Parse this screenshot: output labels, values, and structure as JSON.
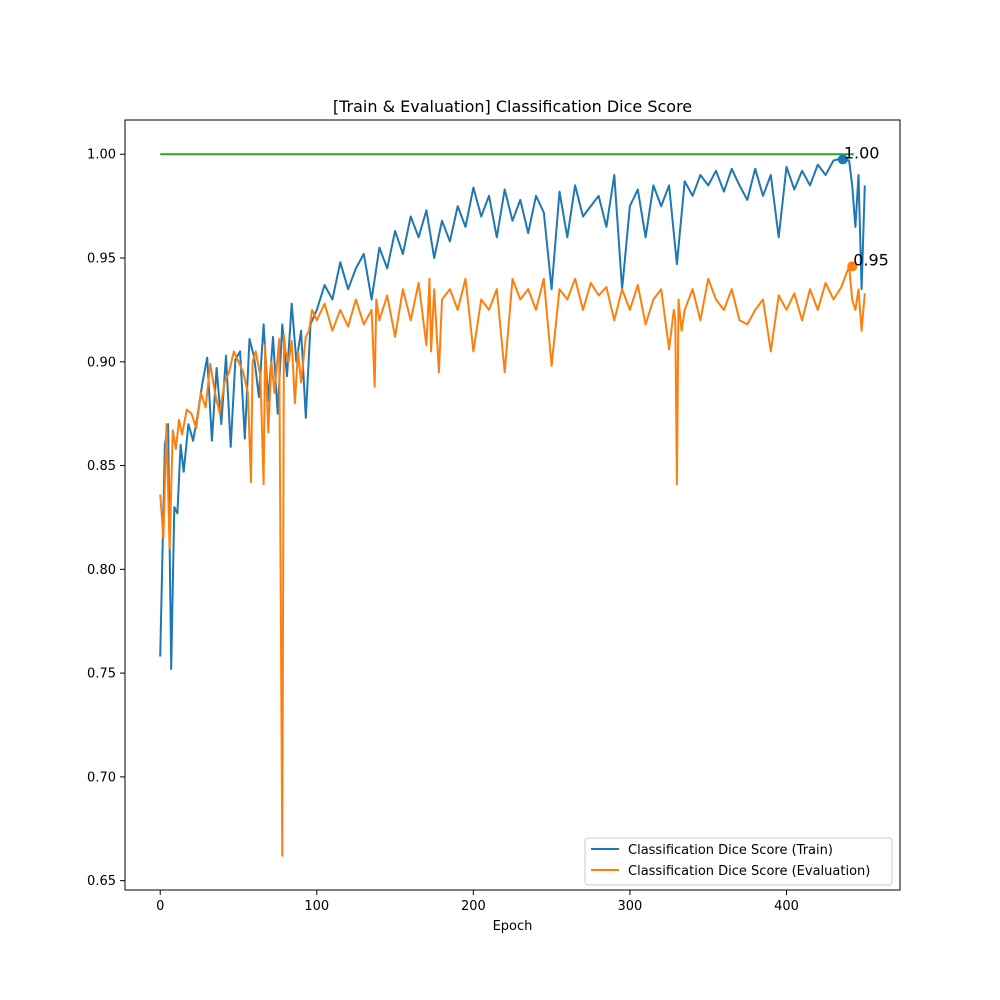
{
  "chart_data": {
    "type": "line",
    "title": "[Train & Evaluation] Classification Dice Score",
    "xlabel": "Epoch",
    "ylabel": "",
    "xlim": [
      -22.5,
      472.5
    ],
    "ylim": [
      0.6455,
      1.0165
    ],
    "xticks": [
      0,
      100,
      200,
      300,
      400
    ],
    "xtick_labels": [
      "0",
      "100",
      "200",
      "300",
      "400"
    ],
    "yticks": [
      0.65,
      0.7,
      0.75,
      0.8,
      0.85,
      0.9,
      0.95,
      1.0
    ],
    "ytick_labels": [
      "0.65",
      "0.70",
      "0.75",
      "0.80",
      "0.85",
      "0.90",
      "0.95",
      "1.00"
    ],
    "grid": false,
    "legend_position": "lower-right",
    "series": [
      {
        "name": "Classification Dice Score (Train)",
        "color": "#1f77b4",
        "x": [
          0,
          3,
          5,
          7,
          9,
          11,
          13,
          15,
          18,
          21,
          24,
          27,
          30,
          33,
          36,
          39,
          42,
          45,
          48,
          51,
          54,
          57,
          60,
          63,
          66,
          69,
          72,
          75,
          78,
          81,
          84,
          87,
          90,
          93,
          96,
          100,
          105,
          110,
          115,
          120,
          125,
          130,
          135,
          140,
          145,
          150,
          155,
          160,
          165,
          170,
          175,
          180,
          185,
          190,
          195,
          200,
          205,
          210,
          215,
          220,
          225,
          230,
          235,
          240,
          245,
          250,
          255,
          260,
          265,
          270,
          275,
          280,
          285,
          290,
          295,
          300,
          305,
          310,
          315,
          320,
          325,
          330,
          335,
          340,
          345,
          350,
          355,
          360,
          365,
          370,
          375,
          380,
          385,
          390,
          395,
          400,
          405,
          410,
          415,
          420,
          425,
          430,
          435,
          440,
          442,
          444,
          446,
          448,
          450
        ],
        "y": [
          0.758,
          0.86,
          0.87,
          0.752,
          0.83,
          0.827,
          0.86,
          0.847,
          0.87,
          0.862,
          0.875,
          0.89,
          0.902,
          0.862,
          0.897,
          0.87,
          0.903,
          0.859,
          0.901,
          0.905,
          0.863,
          0.911,
          0.902,
          0.883,
          0.918,
          0.881,
          0.912,
          0.875,
          0.918,
          0.893,
          0.928,
          0.9,
          0.915,
          0.873,
          0.918,
          0.925,
          0.937,
          0.93,
          0.948,
          0.935,
          0.945,
          0.952,
          0.93,
          0.955,
          0.945,
          0.963,
          0.952,
          0.97,
          0.96,
          0.973,
          0.95,
          0.968,
          0.958,
          0.975,
          0.965,
          0.984,
          0.97,
          0.98,
          0.96,
          0.983,
          0.968,
          0.978,
          0.962,
          0.98,
          0.972,
          0.935,
          0.982,
          0.96,
          0.985,
          0.97,
          0.975,
          0.98,
          0.965,
          0.99,
          0.935,
          0.975,
          0.983,
          0.96,
          0.985,
          0.975,
          0.985,
          0.947,
          0.987,
          0.98,
          0.99,
          0.985,
          0.992,
          0.982,
          0.993,
          0.985,
          0.978,
          0.993,
          0.98,
          0.99,
          0.96,
          0.994,
          0.983,
          0.992,
          0.985,
          0.995,
          0.99,
          0.997,
          0.998,
          0.997,
          0.985,
          0.965,
          0.99,
          0.935,
          0.985
        ]
      },
      {
        "name": "Classification Dice Score (Evaluation)",
        "color": "#ff7f0e",
        "x": [
          0,
          2,
          4,
          6,
          8,
          10,
          12,
          14,
          17,
          20,
          23,
          26,
          29,
          32,
          35,
          38,
          41,
          44,
          47,
          50,
          53,
          56,
          58,
          59,
          61,
          64,
          66,
          67,
          69,
          71,
          73,
          76,
          78,
          79,
          80,
          82,
          84,
          86,
          88,
          90,
          93,
          95,
          97,
          100,
          105,
          110,
          115,
          120,
          125,
          130,
          135,
          137,
          138,
          140,
          145,
          150,
          155,
          160,
          165,
          170,
          172,
          173,
          175,
          178,
          180,
          185,
          190,
          195,
          200,
          205,
          210,
          215,
          220,
          225,
          230,
          235,
          240,
          245,
          250,
          255,
          260,
          265,
          270,
          275,
          280,
          285,
          290,
          295,
          300,
          305,
          310,
          315,
          320,
          325,
          328,
          329,
          330,
          331,
          333,
          335,
          340,
          345,
          350,
          355,
          360,
          365,
          370,
          375,
          380,
          385,
          390,
          395,
          400,
          405,
          410,
          415,
          420,
          425,
          430,
          435,
          440,
          442,
          444,
          446,
          448,
          450
        ],
        "y": [
          0.836,
          0.815,
          0.87,
          0.81,
          0.867,
          0.858,
          0.872,
          0.865,
          0.877,
          0.875,
          0.868,
          0.885,
          0.878,
          0.899,
          0.885,
          0.875,
          0.89,
          0.895,
          0.905,
          0.9,
          0.895,
          0.885,
          0.842,
          0.9,
          0.905,
          0.893,
          0.841,
          0.908,
          0.866,
          0.9,
          0.885,
          0.911,
          0.662,
          0.913,
          0.905,
          0.9,
          0.91,
          0.88,
          0.905,
          0.89,
          0.912,
          0.915,
          0.925,
          0.92,
          0.928,
          0.915,
          0.925,
          0.917,
          0.93,
          0.918,
          0.925,
          0.888,
          0.93,
          0.92,
          0.932,
          0.912,
          0.935,
          0.92,
          0.938,
          0.908,
          0.94,
          0.905,
          0.935,
          0.895,
          0.93,
          0.935,
          0.925,
          0.94,
          0.905,
          0.93,
          0.925,
          0.935,
          0.895,
          0.94,
          0.93,
          0.935,
          0.925,
          0.94,
          0.898,
          0.935,
          0.93,
          0.94,
          0.925,
          0.938,
          0.932,
          0.936,
          0.92,
          0.935,
          0.925,
          0.937,
          0.918,
          0.93,
          0.935,
          0.906,
          0.925,
          0.92,
          0.841,
          0.93,
          0.915,
          0.925,
          0.935,
          0.92,
          0.94,
          0.93,
          0.925,
          0.935,
          0.92,
          0.918,
          0.925,
          0.93,
          0.905,
          0.932,
          0.925,
          0.933,
          0.92,
          0.935,
          0.925,
          0.938,
          0.93,
          0.936,
          0.946,
          0.93,
          0.925,
          0.935,
          0.915,
          0.933
        ]
      },
      {
        "name": "",
        "color": "#2ca02c",
        "x": [
          0,
          443
        ],
        "y": [
          1.0,
          1.0
        ]
      }
    ],
    "markers": [
      {
        "x": 436,
        "y": 0.9975,
        "color": "#1f77b4",
        "label": "1.00"
      },
      {
        "x": 442,
        "y": 0.946,
        "color": "#ff7f0e",
        "label": "0.95"
      }
    ],
    "legend": [
      {
        "label": "Classification Dice Score (Train)",
        "color": "#1f77b4"
      },
      {
        "label": "Classification Dice Score (Evaluation)",
        "color": "#ff7f0e"
      }
    ]
  }
}
